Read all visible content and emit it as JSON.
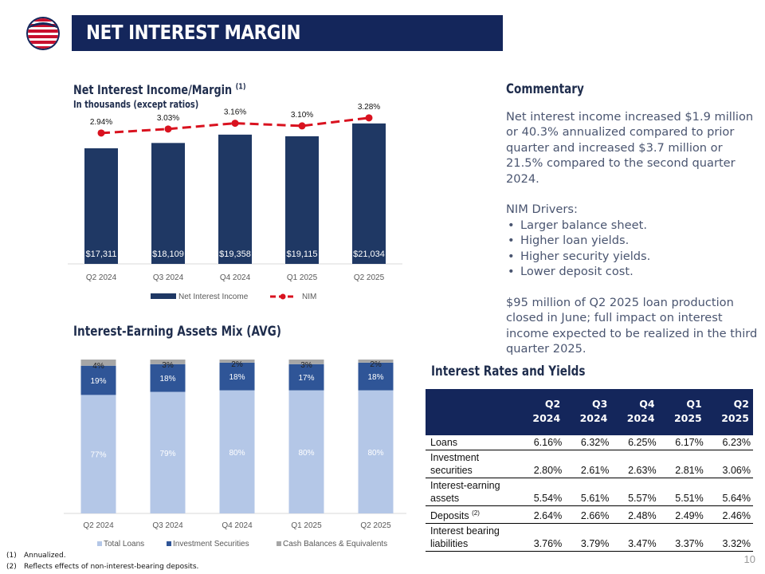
{
  "header": {
    "title": "NET INTEREST MARGIN"
  },
  "nii_chart_title": {
    "main": "Net Interest Income/Margin",
    "footnote_ref": "(1)",
    "subtitle": "In thousands (except ratios)"
  },
  "assets_chart_title": "Interest-Earning Assets Mix (AVG)",
  "commentary": {
    "title": "Commentary",
    "paragraph1": "Net interest income increased $1.9 million or 40.3% annualized compared to prior quarter and increased $3.7 million or 21.5% compared to the second quarter 2024.",
    "drivers_title": "NIM Drivers:",
    "drivers": [
      "Larger balance sheet.",
      "Higher loan yields.",
      "Higher security yields.",
      "Lower deposit cost."
    ],
    "paragraph2": "$95 million of Q2 2025 loan production closed in June; full impact on interest income expected to be realized in the third quarter 2025."
  },
  "rates_table": {
    "title": "Interest Rates and Yields",
    "columns": [
      {
        "line1": "Q2",
        "line2": "2024"
      },
      {
        "line1": "Q3",
        "line2": "2024"
      },
      {
        "line1": "Q4",
        "line2": "2024"
      },
      {
        "line1": "Q1",
        "line2": "2025"
      },
      {
        "line1": "Q2",
        "line2": "2025"
      }
    ],
    "rows": [
      {
        "label": "Loans",
        "values": [
          "6.16%",
          "6.32%",
          "6.25%",
          "6.17%",
          "6.23%"
        ]
      },
      {
        "label": "Investment securities",
        "values": [
          "2.80%",
          "2.61%",
          "2.63%",
          "2.81%",
          "3.06%"
        ]
      },
      {
        "label": "Interest-earning assets",
        "values": [
          "5.54%",
          "5.61%",
          "5.57%",
          "5.51%",
          "5.64%"
        ]
      },
      {
        "label": "Deposits",
        "label_ref": "(2)",
        "values": [
          "2.64%",
          "2.66%",
          "2.48%",
          "2.49%",
          "2.46%"
        ]
      },
      {
        "label": "Interest bearing liabilities",
        "values": [
          "3.76%",
          "3.79%",
          "3.47%",
          "3.37%",
          "3.32%"
        ]
      }
    ]
  },
  "footnotes": [
    {
      "num": "(1)",
      "text": "Annualized."
    },
    {
      "num": "(2)",
      "text": "Reflects effects of non-interest-bearing deposits."
    }
  ],
  "page_number": "10",
  "colors": {
    "navy": "#14265b",
    "bar_navy": "#1f3864",
    "nim_red": "#d9121f",
    "light_blue": "#b4c7e7",
    "mid_blue": "#2f5597",
    "gray": "#a6a6a6"
  },
  "chart_data": [
    {
      "type": "bar",
      "title": "Net Interest Income/Margin",
      "categories": [
        "Q2 2024",
        "Q3 2024",
        "Q4 2024",
        "Q1 2025",
        "Q2 2025"
      ],
      "series": [
        {
          "name": "Net Interest Income",
          "kind": "bar",
          "values": [
            17311,
            18109,
            19358,
            19115,
            21034
          ],
          "labels": [
            "$17,311",
            "$18,109",
            "$19,358",
            "$19,115",
            "$21,034"
          ]
        },
        {
          "name": "NIM",
          "kind": "line",
          "values": [
            2.94,
            3.03,
            3.16,
            3.1,
            3.28
          ],
          "labels": [
            "2.94%",
            "3.03%",
            "3.16%",
            "3.10%",
            "3.28%"
          ]
        }
      ],
      "bar_ylim": [
        0,
        24000
      ],
      "line_ylim": [
        0,
        3.6
      ],
      "legend": "bottom"
    },
    {
      "type": "bar",
      "stacked": true,
      "title": "Interest-Earning Assets Mix (AVG)",
      "categories": [
        "Q2 2024",
        "Q3 2024",
        "Q4 2024",
        "Q1 2025",
        "Q2 2025"
      ],
      "series": [
        {
          "name": "Total Loans",
          "values": [
            77,
            79,
            80,
            80,
            80
          ]
        },
        {
          "name": "Investment Securities",
          "values": [
            19,
            18,
            18,
            17,
            18
          ]
        },
        {
          "name": "Cash Balances & Equivalents",
          "values": [
            4,
            3,
            2,
            3,
            2
          ]
        }
      ],
      "ylim": [
        0,
        100
      ],
      "legend": "bottom"
    }
  ]
}
